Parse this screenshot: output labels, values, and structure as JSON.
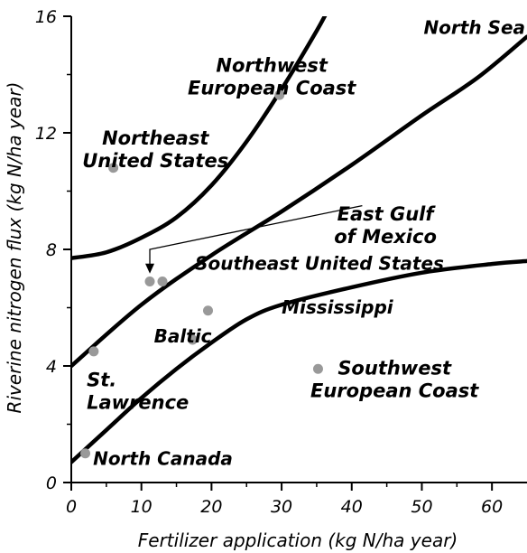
{
  "chart_data": {
    "type": "scatter",
    "title": "",
    "xlabel": "Fertilizer application (kg N/ha year)",
    "ylabel": "Riverine nitrogen flux (kg N/ha year)",
    "xlim": [
      0,
      65
    ],
    "ylim": [
      0,
      16
    ],
    "xticks": [
      "0",
      "10",
      "20",
      "30",
      "40",
      "50",
      "60"
    ],
    "yticks": [
      "0",
      "4",
      "8",
      "12",
      "16"
    ],
    "grid": false,
    "points": [
      {
        "x": 2,
        "y": 1.0
      },
      {
        "x": 3.2,
        "y": 4.5
      },
      {
        "x": 6,
        "y": 10.8
      },
      {
        "x": 11.2,
        "y": 6.9
      },
      {
        "x": 13,
        "y": 6.9
      },
      {
        "x": 17.3,
        "y": 4.9
      },
      {
        "x": 19.5,
        "y": 5.9
      },
      {
        "x": 29.7,
        "y": 13.3
      },
      {
        "x": 35.2,
        "y": 3.9
      }
    ],
    "boundaries": [
      [
        [
          0,
          7.7
        ],
        [
          5,
          7.9
        ],
        [
          10,
          8.4
        ],
        [
          15,
          9.1
        ],
        [
          20,
          10.2
        ],
        [
          25,
          11.7
        ],
        [
          30,
          13.5
        ],
        [
          35,
          15.5
        ],
        [
          37,
          16.4
        ]
      ],
      [
        [
          0,
          4.0
        ],
        [
          10,
          6.1
        ],
        [
          20,
          7.8
        ],
        [
          30,
          9.3
        ],
        [
          40,
          10.9
        ],
        [
          50,
          12.6
        ],
        [
          58,
          13.9
        ],
        [
          65,
          15.3
        ]
      ],
      [
        [
          0,
          0.7
        ],
        [
          5,
          1.8
        ],
        [
          10,
          2.9
        ],
        [
          15,
          3.9
        ],
        [
          20,
          4.8
        ],
        [
          25,
          5.6
        ],
        [
          30,
          6.1
        ],
        [
          40,
          6.7
        ],
        [
          50,
          7.2
        ],
        [
          60,
          7.5
        ],
        [
          65,
          7.6
        ]
      ]
    ],
    "annotation_arrow": {
      "from": [
        41.5,
        9.5
      ],
      "to": [
        11.2,
        7.2
      ]
    },
    "region_labels": [
      {
        "lines": [
          "North Sea"
        ],
        "x": 57.5,
        "y": 15.4
      },
      {
        "lines": [
          "Northwest",
          "European Coast"
        ],
        "x": 28.6,
        "y": 14.1
      },
      {
        "lines": [
          "Northeast",
          "United States"
        ],
        "x": 12,
        "y": 11.6
      },
      {
        "lines": [
          "East Gulf",
          "of Mexico"
        ],
        "x": 44.8,
        "y": 9.0
      },
      {
        "lines": [
          "Southeast United States"
        ],
        "x": 35.4,
        "y": 7.3
      },
      {
        "lines": [
          "Mississippi"
        ],
        "x": 30,
        "y": 5.8
      },
      {
        "lines": [
          "Baltic"
        ],
        "x": 11.8,
        "y": 4.8
      },
      {
        "lines": [
          "Southwest",
          "European Coast"
        ],
        "x": 46.1,
        "y": 3.7
      },
      {
        "lines": [
          "St.",
          "Lawrence"
        ],
        "x": 2.2,
        "y": 3.3
      },
      {
        "lines": [
          "North Canada"
        ],
        "x": 3.1,
        "y": 0.6
      }
    ]
  }
}
